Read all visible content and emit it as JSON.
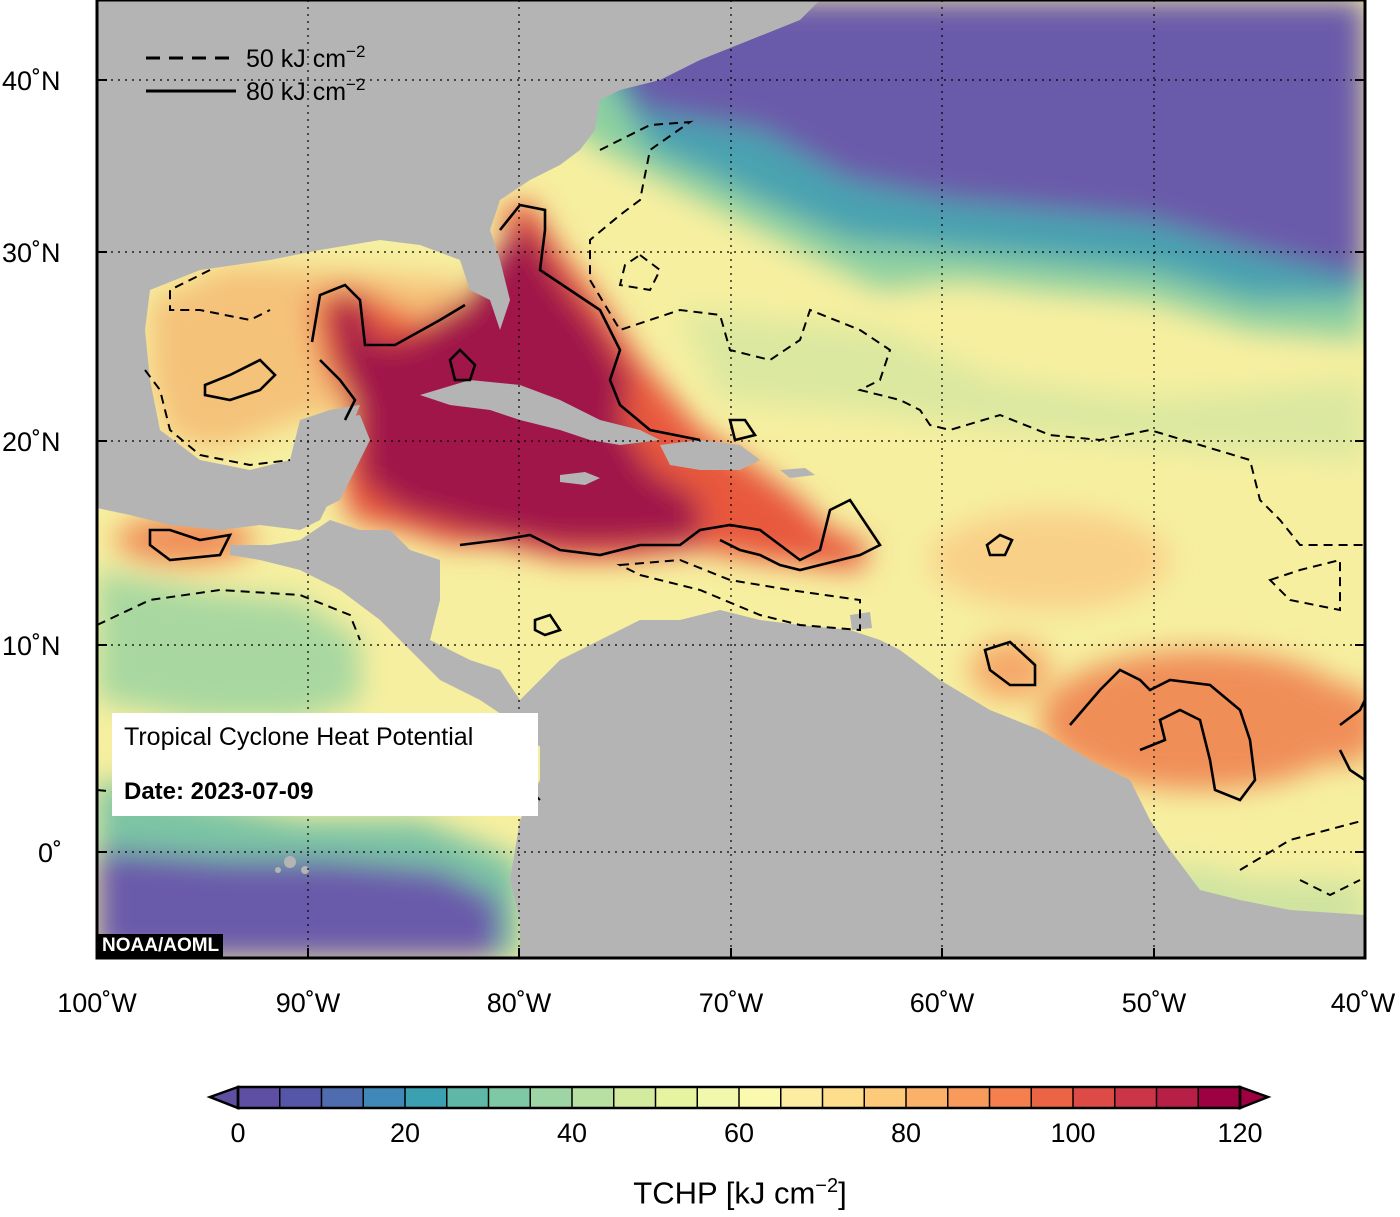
{
  "map": {
    "title": "Tropical Cyclone Heat Potential",
    "date_label": "Date: 2023-07-09",
    "credit": "NOAA/AOML",
    "lon_labels": [
      "100˚W",
      "90˚W",
      "80˚W",
      "70˚W",
      "60˚W",
      "50˚W",
      "40˚W"
    ],
    "lat_labels": [
      "40˚N",
      "30˚N",
      "20˚N",
      "10˚N",
      "0˚"
    ],
    "contour_legend": [
      {
        "style": "dashed",
        "label_main": "50 kJ cm",
        "label_exp": "−2"
      },
      {
        "style": "solid",
        "label_main": "80 kJ cm",
        "label_exp": "−2"
      }
    ],
    "colorbar": {
      "min": 0,
      "max": 120,
      "step": 5,
      "tick_labels": [
        "0",
        "20",
        "40",
        "60",
        "80",
        "100",
        "120"
      ],
      "title_main": "TCHP [kJ cm",
      "title_exp": "−2",
      "title_end": "]"
    },
    "colors": {
      "land": "#b4b4b4",
      "deep_cold": "#6a5aaa",
      "max_heat": "#a0124a"
    }
  }
}
